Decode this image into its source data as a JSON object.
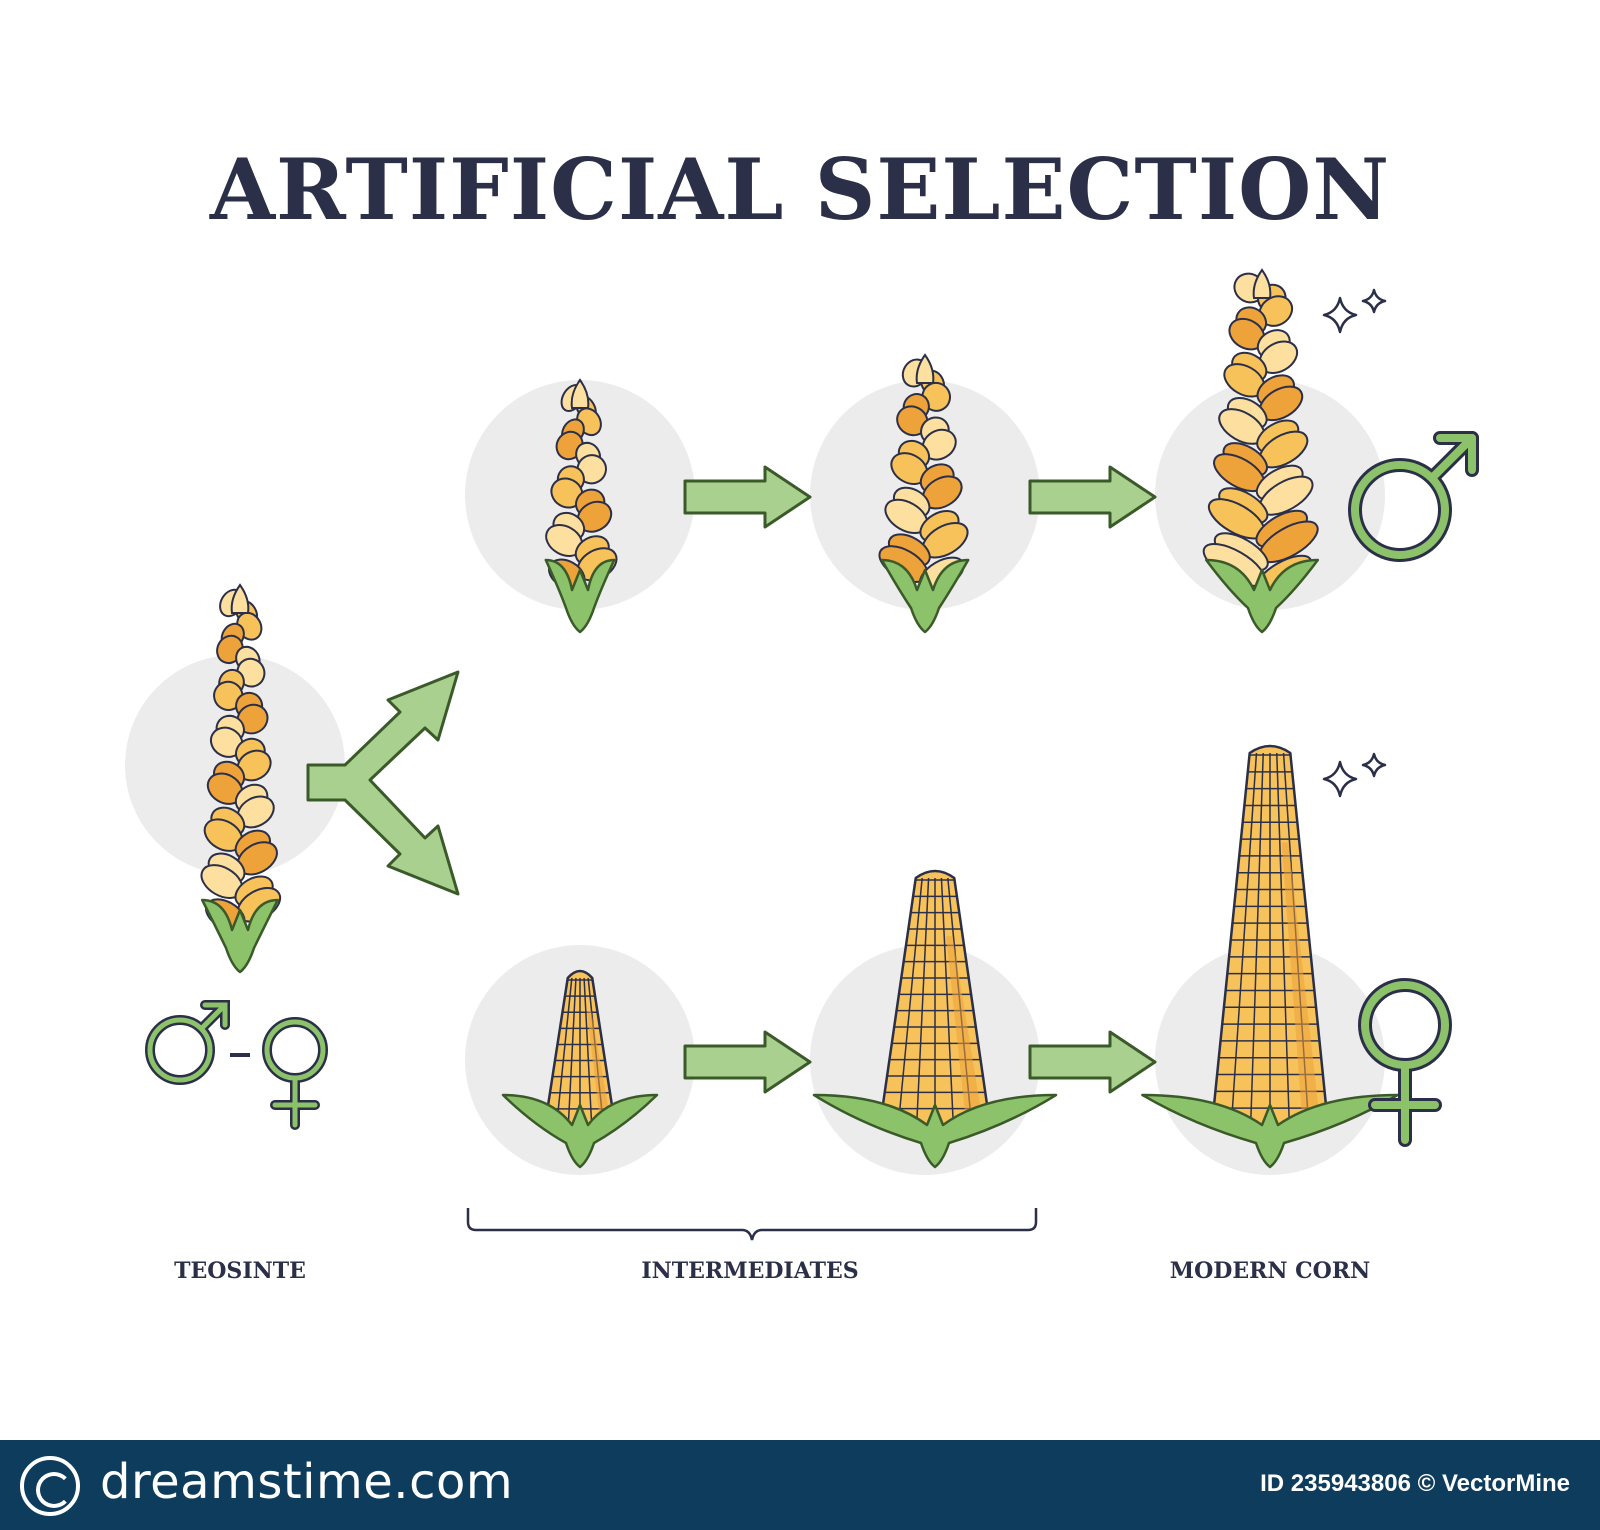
{
  "title": "ARTIFICIAL SELECTION",
  "labels": {
    "teosinte": "TEOSINTE",
    "intermediates": "INTERMEDIATES",
    "modern_corn": "MODERN CORN"
  },
  "footer": {
    "brand": "dreamstime.com",
    "id_text": "ID 235943806 © VectorMine"
  },
  "colors": {
    "title": "#2b2f48",
    "arrow_fill": "#a9d08e",
    "arrow_stroke": "#3b5a2a",
    "kernel_light": "#fde0a0",
    "kernel_mid": "#f7c25a",
    "kernel_dark": "#eea23a",
    "husk": "#8cc26a",
    "circle_bg": "#ececec",
    "symbol": "#6b9a44",
    "footer_bg": "#0d3c5c"
  },
  "icons": [
    "male-symbol-icon",
    "female-symbol-icon",
    "sparkle-icon",
    "arrow-icon",
    "split-arrow-icon",
    "brace-icon"
  ]
}
